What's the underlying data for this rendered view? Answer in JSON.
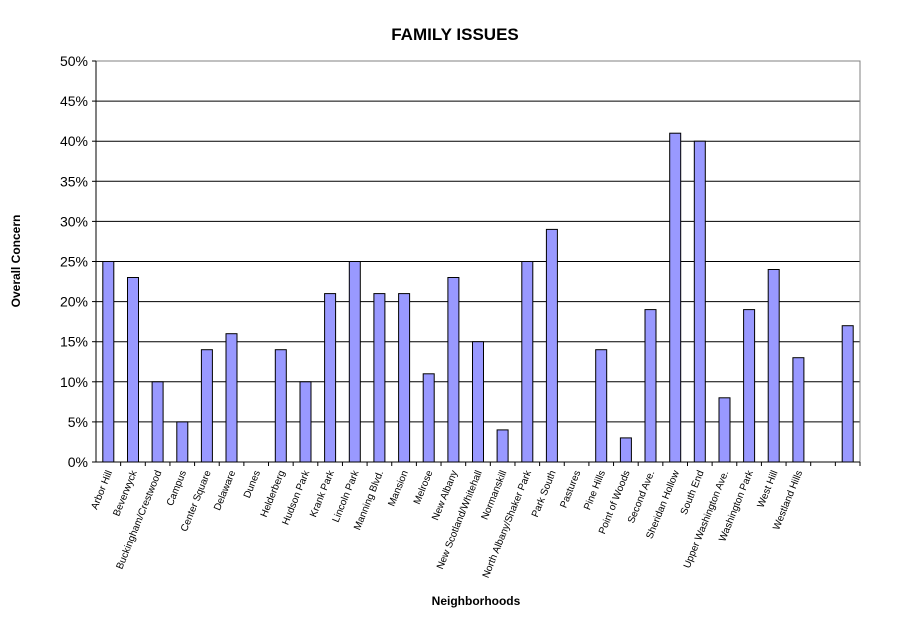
{
  "chart_data": {
    "type": "bar",
    "title": "FAMILY ISSUES",
    "xlabel": "Neighborhoods",
    "ylabel": "Overall Concern",
    "ylim": [
      0,
      0.5
    ],
    "ytick_labels": [
      "0%",
      "5%",
      "10%",
      "15%",
      "20%",
      "25%",
      "30%",
      "35%",
      "40%",
      "45%",
      "50%"
    ],
    "grid": true,
    "legend": "none",
    "bar_color": "#9999ff",
    "categories": [
      "Arbor Hill",
      "Beverwyck",
      "Buckingham/Crestwood",
      "Campus",
      "Center Square",
      "Delaware",
      "Dunes",
      "Helderberg",
      "Hudson Park",
      "Krank Park",
      "Lincoln Park",
      "Manning Blvd.",
      "Mansion",
      "Melrose",
      "New Albany",
      "New Scotland/Whitehall",
      "Normanskill",
      "North Albany/Shaker Park",
      "Park South",
      "Pastures",
      "Pine Hills",
      "Point of Woods",
      "Second Ave.",
      "Sheridan Hollow",
      "South End",
      "Upper Washington Ave.",
      "Washington Park",
      "West Hill",
      "Westland Hills",
      "",
      ""
    ],
    "values": [
      0.25,
      0.23,
      0.1,
      0.05,
      0.14,
      0.16,
      0.0,
      0.14,
      0.1,
      0.21,
      0.25,
      0.21,
      0.21,
      0.11,
      0.23,
      0.15,
      0.04,
      0.25,
      0.29,
      0.0,
      0.14,
      0.03,
      0.19,
      0.41,
      0.4,
      0.08,
      0.19,
      0.24,
      0.13,
      0.0,
      0.17
    ]
  }
}
